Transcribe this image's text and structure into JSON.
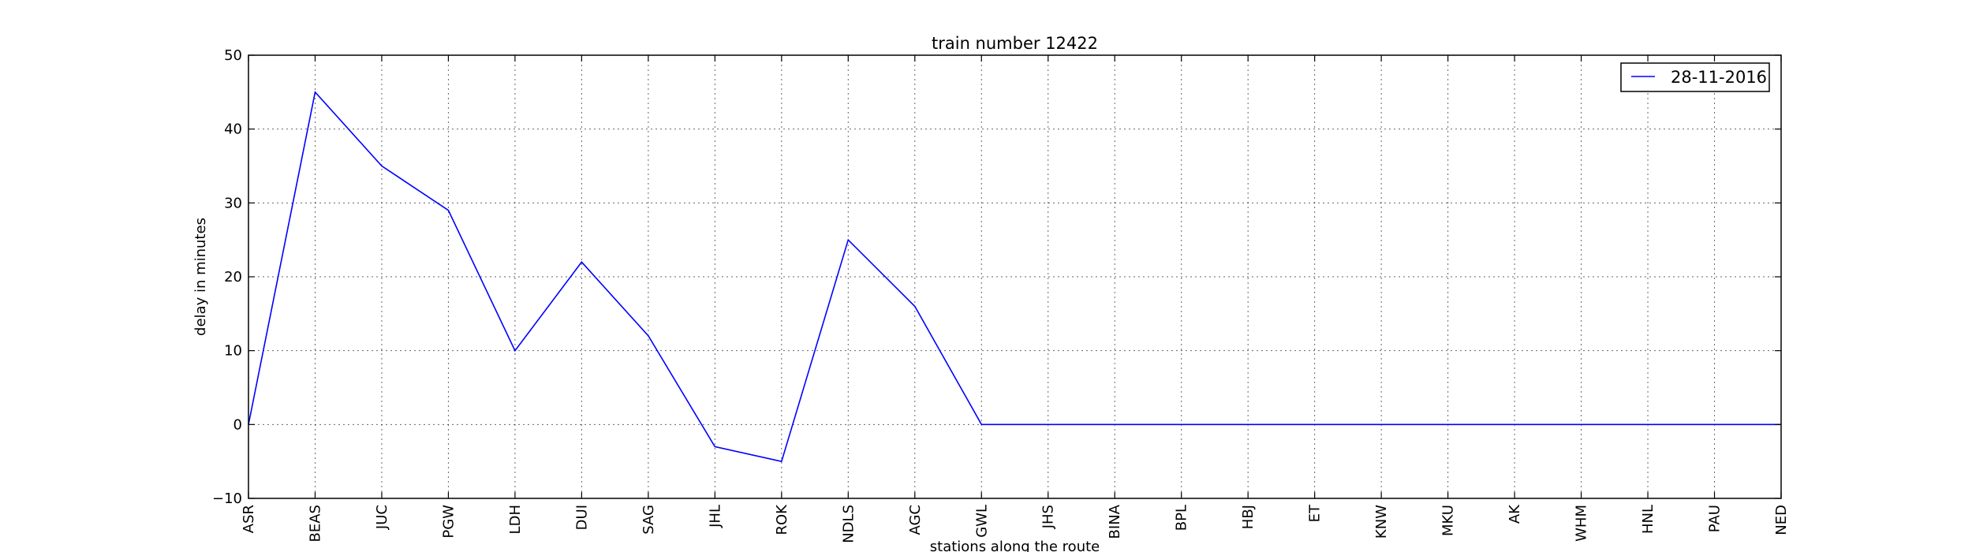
{
  "chart_data": {
    "type": "line",
    "title": "train number 12422",
    "xlabel": "stations along the route",
    "ylabel": "delay in minutes",
    "categories": [
      "ASR",
      "BEAS",
      "JUC",
      "PGW",
      "LDH",
      "DUI",
      "SAG",
      "JHL",
      "ROK",
      "NDLS",
      "AGC",
      "GWL",
      "JHS",
      "BINA",
      "BPL",
      "HBJ",
      "ET",
      "KNW",
      "MKU",
      "AK",
      "WHM",
      "HNL",
      "PAU",
      "NED"
    ],
    "series": [
      {
        "name": "28-11-2016",
        "color": "#0000ff",
        "values": [
          0,
          45,
          35,
          29,
          10,
          22,
          12,
          -3,
          -5,
          25,
          16,
          0,
          0,
          0,
          0,
          0,
          0,
          0,
          0,
          0,
          0,
          0,
          0,
          0
        ]
      }
    ],
    "ylim": [
      -10,
      50
    ],
    "yticks": [
      -10,
      0,
      10,
      20,
      30,
      40,
      50
    ],
    "grid": true,
    "legend_position": "top-right"
  }
}
